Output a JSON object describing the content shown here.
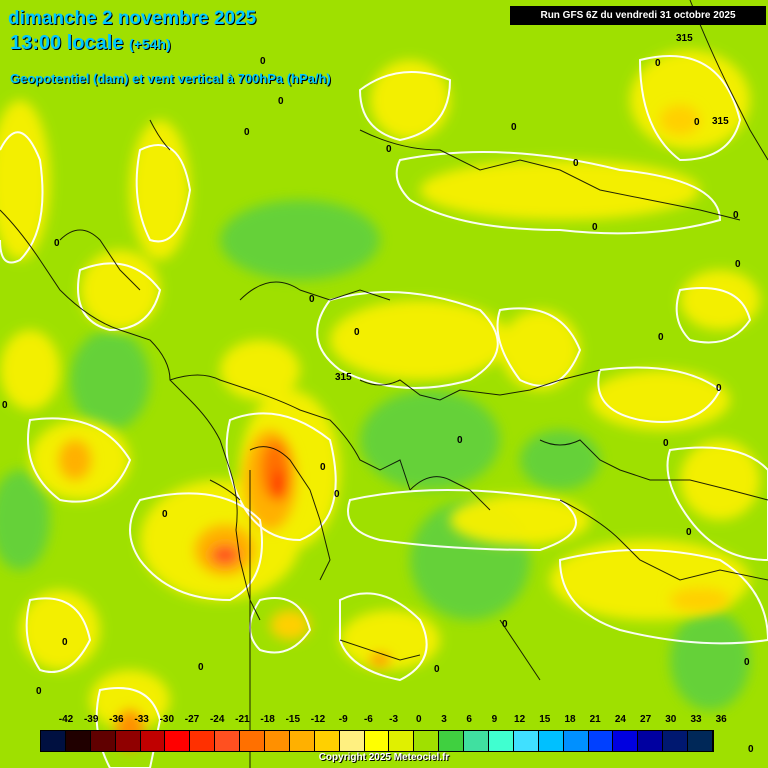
{
  "header": {
    "date_line": "dimanche 2 novembre 2025",
    "time_line": "13:00 locale",
    "lead_time": "(+54h)",
    "parameter": "Geopotentiel (dam) et vent vertical à 700hPa (hPa/h)",
    "run_info": "Run GFS 6Z du vendredi 31 octobre 2025"
  },
  "footer": {
    "copyright": "Copyright 2025 Meteociel.fr"
  },
  "legend": {
    "ticks": [
      "-42",
      "-39",
      "-36",
      "-33",
      "-30",
      "-27",
      "-24",
      "-21",
      "-18",
      "-15",
      "-12",
      "-9",
      "-6",
      "-3",
      "0",
      "3",
      "6",
      "9",
      "12",
      "15",
      "18",
      "21",
      "24",
      "27",
      "30",
      "33",
      "36"
    ],
    "colors": [
      "#001040",
      "#200000",
      "#600000",
      "#900000",
      "#c00000",
      "#ff0000",
      "#ff3000",
      "#ff5020",
      "#ff7000",
      "#ff9000",
      "#ffb000",
      "#ffd000",
      "#fff080",
      "#ffff00",
      "#e0f000",
      "#a0e000",
      "#40d040",
      "#40e0a0",
      "#40ffd0",
      "#40e0ff",
      "#00c0ff",
      "#0090ff",
      "#0040ff",
      "#0000e0",
      "#0000a0",
      "#001870",
      "#002858"
    ]
  },
  "map_labels": {
    "contour_zero": "0",
    "geopotential": [
      "315",
      "315",
      "315"
    ]
  }
}
